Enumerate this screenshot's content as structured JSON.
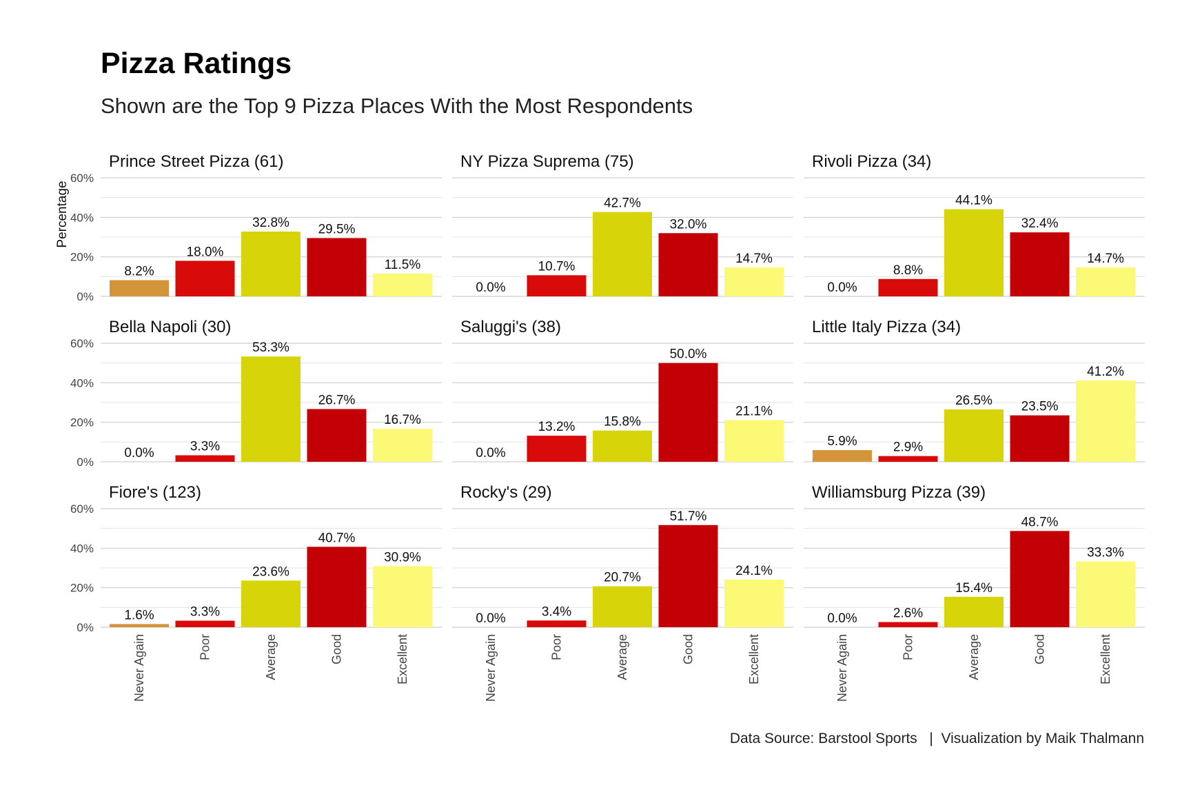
{
  "title": "Pizza Ratings",
  "subtitle": "Shown are the Top 9 Pizza Places With the Most Respondents",
  "caption": {
    "source": "Data Source: Barstool Sports",
    "separator": "|",
    "credit": "Visualization by Maik Thalmann"
  },
  "chart_data": {
    "type": "bar",
    "ylabel": "Percentage",
    "ylim": [
      0,
      60
    ],
    "yticks": [
      "0%",
      "20%",
      "40%",
      "60%"
    ],
    "grid": true,
    "categories": [
      "Never Again",
      "Poor",
      "Average",
      "Good",
      "Excellent"
    ],
    "colors": {
      "Never Again": "#D4943A",
      "Poor": "#D90A0A",
      "Average": "#D8D40A",
      "Good": "#C20005",
      "Excellent": "#FCF977"
    },
    "facets": [
      {
        "name": "Prince Street Pizza (61)",
        "values": [
          8.2,
          18.0,
          32.8,
          29.5,
          11.5
        ],
        "labels": [
          "8.2%",
          "18.0%",
          "32.8%",
          "29.5%",
          "11.5%"
        ]
      },
      {
        "name": "NY Pizza Suprema (75)",
        "values": [
          0.0,
          10.7,
          42.7,
          32.0,
          14.7
        ],
        "labels": [
          "0.0%",
          "10.7%",
          "42.7%",
          "32.0%",
          "14.7%"
        ]
      },
      {
        "name": "Rivoli Pizza (34)",
        "values": [
          0.0,
          8.8,
          44.1,
          32.4,
          14.7
        ],
        "labels": [
          "0.0%",
          "8.8%",
          "44.1%",
          "32.4%",
          "14.7%"
        ]
      },
      {
        "name": "Bella Napoli (30)",
        "values": [
          0.0,
          3.3,
          53.3,
          26.7,
          16.7
        ],
        "labels": [
          "0.0%",
          "3.3%",
          "53.3%",
          "26.7%",
          "16.7%"
        ]
      },
      {
        "name": "Saluggi's (38)",
        "values": [
          0.0,
          13.2,
          15.8,
          50.0,
          21.1
        ],
        "labels": [
          "0.0%",
          "13.2%",
          "15.8%",
          "50.0%",
          "21.1%"
        ]
      },
      {
        "name": "Little Italy Pizza (34)",
        "values": [
          5.9,
          2.9,
          26.5,
          23.5,
          41.2
        ],
        "labels": [
          "5.9%",
          "2.9%",
          "26.5%",
          "23.5%",
          "41.2%"
        ]
      },
      {
        "name": "Fiore's (123)",
        "values": [
          1.6,
          3.3,
          23.6,
          40.7,
          30.9
        ],
        "labels": [
          "1.6%",
          "3.3%",
          "23.6%",
          "40.7%",
          "30.9%"
        ]
      },
      {
        "name": "Rocky's (29)",
        "values": [
          0.0,
          3.4,
          20.7,
          51.7,
          24.1
        ],
        "labels": [
          "0.0%",
          "3.4%",
          "20.7%",
          "51.7%",
          "24.1%"
        ]
      },
      {
        "name": "Williamsburg Pizza (39)",
        "values": [
          0.0,
          2.6,
          15.4,
          48.7,
          33.3
        ],
        "labels": [
          "0.0%",
          "2.6%",
          "15.4%",
          "48.7%",
          "33.3%"
        ]
      }
    ]
  }
}
